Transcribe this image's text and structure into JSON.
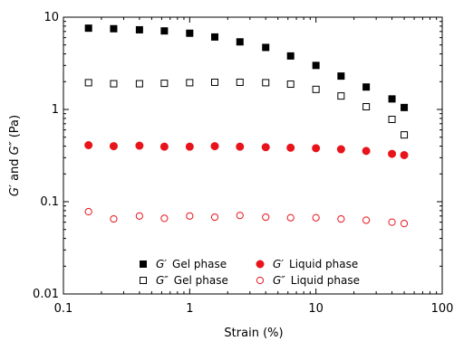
{
  "chart_data": {
    "type": "scatter",
    "title": "",
    "xlabel": "Strain (%)",
    "ylabel_parts": [
      "G′",
      " and ",
      "G″",
      " (Pa)"
    ],
    "xscale": "log",
    "yscale": "log",
    "xlim": [
      0.1,
      100
    ],
    "ylim": [
      0.01,
      10
    ],
    "x_ticks": [
      {
        "value": 0.1,
        "label": "0.1"
      },
      {
        "value": 1,
        "label": "1"
      },
      {
        "value": 10,
        "label": "10"
      },
      {
        "value": 100,
        "label": "100"
      }
    ],
    "y_ticks": [
      {
        "value": 0.01,
        "label": "0.01"
      },
      {
        "value": 0.1,
        "label": "0.1"
      },
      {
        "value": 1,
        "label": "1"
      },
      {
        "value": 10,
        "label": "10"
      }
    ],
    "grid": false,
    "legend_position": "bottom-center",
    "x": [
      0.158,
      0.25,
      0.4,
      0.63,
      1.0,
      1.58,
      2.5,
      4.0,
      6.3,
      10,
      15.8,
      25,
      40,
      50
    ],
    "series": [
      {
        "name_symbol": "G′",
        "name_text": "Gel phase",
        "marker": "square-filled",
        "color": "#000000",
        "values": [
          7.6,
          7.5,
          7.3,
          7.1,
          6.7,
          6.1,
          5.4,
          4.7,
          3.8,
          3.0,
          2.3,
          1.75,
          1.3,
          1.05
        ]
      },
      {
        "name_symbol": "G″",
        "name_text": "Gel phase",
        "marker": "square-open",
        "color": "#000000",
        "values": [
          1.95,
          1.9,
          1.9,
          1.92,
          1.95,
          1.97,
          1.97,
          1.95,
          1.88,
          1.65,
          1.4,
          1.07,
          0.78,
          0.53
        ]
      },
      {
        "name_symbol": "G′",
        "name_text": "Liquid phase",
        "marker": "circle-filled",
        "color": "#e8141b",
        "values": [
          0.41,
          0.4,
          0.405,
          0.395,
          0.395,
          0.4,
          0.395,
          0.39,
          0.385,
          0.38,
          0.37,
          0.355,
          0.33,
          0.32
        ]
      },
      {
        "name_symbol": "G″",
        "name_text": "Liquid phase",
        "marker": "circle-open",
        "color": "#e8141b",
        "values": [
          0.078,
          0.065,
          0.07,
          0.066,
          0.07,
          0.068,
          0.071,
          0.068,
          0.067,
          0.067,
          0.065,
          0.063,
          0.06,
          0.058
        ]
      }
    ]
  }
}
